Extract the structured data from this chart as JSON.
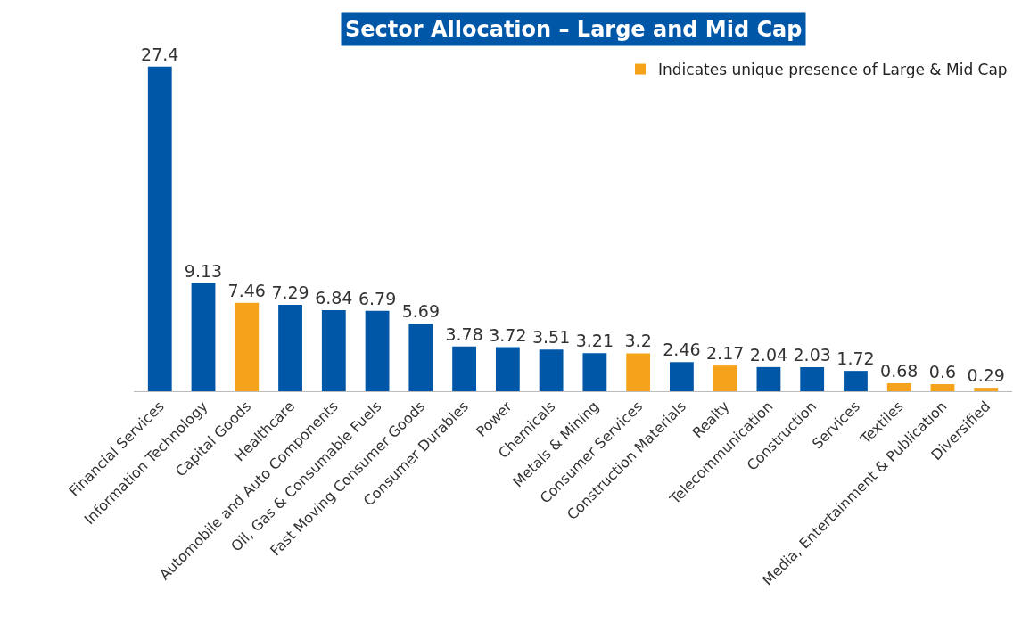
{
  "chart_data": {
    "type": "bar",
    "title": "Sector Allocation – Large and Mid Cap",
    "categories": [
      "Financial Services",
      "Information Technology",
      "Capital Goods",
      "Healthcare",
      "Automobile and Auto Components",
      "Oil, Gas & Consumable Fuels",
      "Fast Moving Consumer Goods",
      "Consumer Durables",
      "Power",
      "Chemicals",
      "Metals & Mining",
      "Consumer Services",
      "Construction Materials",
      "Realty",
      "Telecommunication",
      "Construction",
      "Services",
      "Textiles",
      "Media, Entertainment & Publication",
      "Diversified"
    ],
    "series": [
      {
        "color": "#0057a8",
        "values": [
          27.4,
          9.13,
          null,
          7.29,
          6.84,
          6.79,
          5.69,
          3.78,
          3.72,
          3.51,
          3.21,
          null,
          2.46,
          null,
          2.04,
          2.03,
          1.72,
          null,
          null,
          null
        ]
      },
      {
        "name": "Indicates unique presence of Large & Mid Cap",
        "color": "#f5a31a",
        "values": [
          null,
          null,
          7.46,
          null,
          null,
          null,
          null,
          null,
          null,
          null,
          null,
          3.2,
          null,
          2.17,
          null,
          null,
          null,
          0.68,
          0.6,
          0.29
        ]
      }
    ],
    "data_labels": true,
    "legend": "top right"
  }
}
